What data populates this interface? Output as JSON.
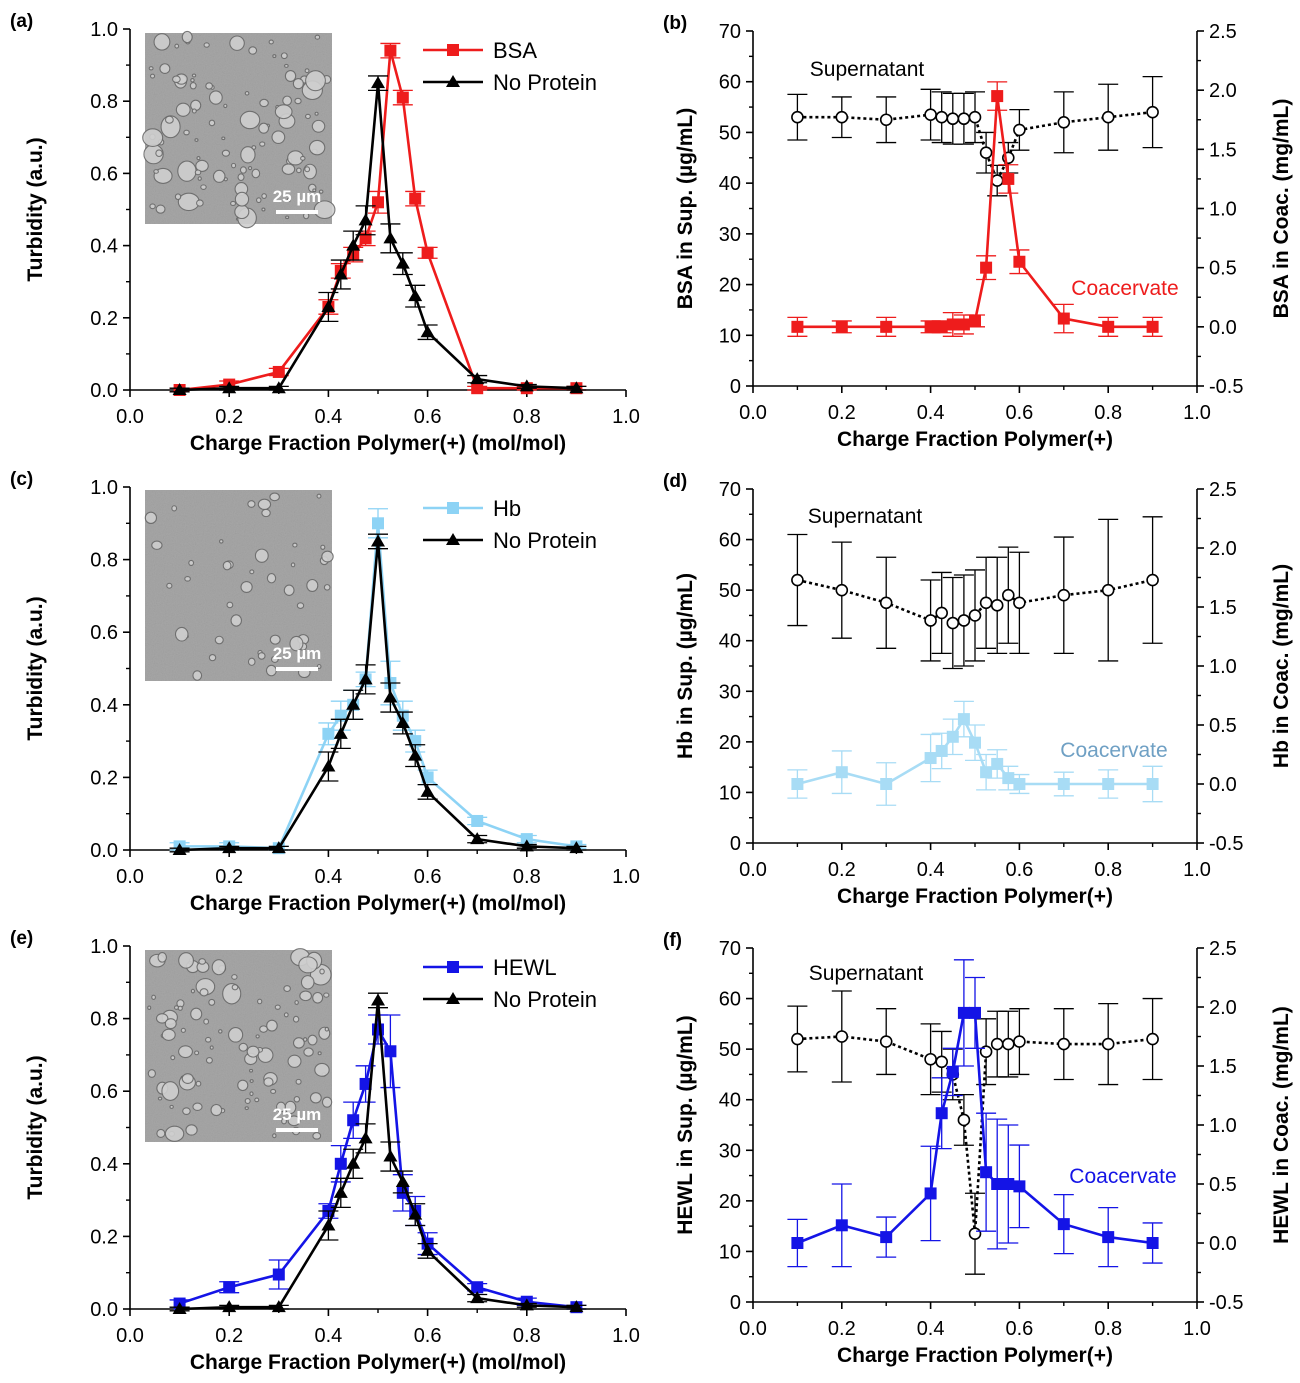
{
  "figure": {
    "panels": [
      "a",
      "b",
      "c",
      "d",
      "e",
      "f"
    ]
  },
  "chart_data": [
    {
      "id": "a",
      "type": "line",
      "panel_label": "(a)",
      "xlabel": "Charge Fraction Polymer(+) (mol/mol)",
      "ylabel": "Turbidity (a.u.)",
      "xlim": [
        0.0,
        1.0
      ],
      "ylim": [
        0.0,
        1.0
      ],
      "xticks": [
        "0.0",
        "0.2",
        "0.4",
        "0.6",
        "0.8",
        "1.0"
      ],
      "yticks": [
        "0.0",
        "0.2",
        "0.4",
        "0.6",
        "0.8",
        "1.0"
      ],
      "legend_position": "top-right",
      "inset": {
        "scale_bar_label": "25 µm",
        "kind": "micrograph"
      },
      "series": [
        {
          "name": "BSA",
          "color": "#ee1c1c",
          "marker": "square",
          "x": [
            0.1,
            0.2,
            0.3,
            0.4,
            0.425,
            0.45,
            0.475,
            0.5,
            0.525,
            0.55,
            0.575,
            0.6,
            0.7,
            0.8,
            0.9
          ],
          "y": [
            0.0,
            0.015,
            0.05,
            0.23,
            0.33,
            0.375,
            0.42,
            0.52,
            0.94,
            0.81,
            0.53,
            0.38,
            0.005,
            0.005,
            0.005
          ],
          "err": [
            0.005,
            0.01,
            0.01,
            0.02,
            0.02,
            0.02,
            0.02,
            0.03,
            0.02,
            0.02,
            0.02,
            0.015,
            0.005,
            0.005,
            0.005
          ]
        },
        {
          "name": "No Protein",
          "color": "#000000",
          "marker": "triangle",
          "x": [
            0.1,
            0.2,
            0.3,
            0.4,
            0.425,
            0.45,
            0.475,
            0.5,
            0.525,
            0.55,
            0.575,
            0.6,
            0.7,
            0.8,
            0.9
          ],
          "y": [
            0.0,
            0.005,
            0.005,
            0.23,
            0.32,
            0.4,
            0.47,
            0.85,
            0.42,
            0.35,
            0.26,
            0.16,
            0.03,
            0.01,
            0.005
          ],
          "err": [
            0.005,
            0.005,
            0.005,
            0.04,
            0.04,
            0.04,
            0.04,
            0.02,
            0.04,
            0.03,
            0.03,
            0.02,
            0.01,
            0.005,
            0.005
          ]
        }
      ]
    },
    {
      "id": "b",
      "type": "line",
      "panel_label": "(b)",
      "xlabel": "Charge Fraction Polymer(+)",
      "ylabel": "BSA in Sup. (µg/mL)",
      "y2label": "BSA in Coac. (mg/mL)",
      "xlim": [
        0.0,
        1.0
      ],
      "ylim": [
        0,
        70
      ],
      "y2lim": [
        -0.5,
        2.5
      ],
      "xticks": [
        "0.0",
        "0.2",
        "0.4",
        "0.6",
        "0.8",
        "1.0"
      ],
      "yticks": [
        "0",
        "10",
        "20",
        "30",
        "40",
        "50",
        "60",
        "70"
      ],
      "y2ticks": [
        "-0.5",
        "0.0",
        "0.5",
        "1.0",
        "1.5",
        "2.0",
        "2.5"
      ],
      "annotations": [
        {
          "text": "Supernatant",
          "color": "#000000",
          "x": 0.18,
          "y": 62
        },
        {
          "text": "Coacervate",
          "color": "#ee1c1c",
          "x": 0.8,
          "y": 19
        }
      ],
      "series": [
        {
          "name": "Supernatant",
          "color": "#000000",
          "marker": "open-circle",
          "axis": "left",
          "dash": true,
          "x": [
            0.1,
            0.2,
            0.3,
            0.4,
            0.425,
            0.45,
            0.475,
            0.5,
            0.525,
            0.55,
            0.575,
            0.6,
            0.7,
            0.8,
            0.9
          ],
          "y": [
            53,
            53,
            52.5,
            53.5,
            53,
            52.7,
            52.7,
            53,
            46,
            40.5,
            45,
            50.5,
            52,
            53,
            54
          ],
          "err": [
            4.5,
            4,
            4.5,
            5,
            5,
            5,
            5,
            5,
            4,
            3,
            3,
            4,
            6,
            6.5,
            7
          ]
        },
        {
          "name": "Coacervate",
          "color": "#ee1c1c",
          "marker": "square",
          "axis": "right",
          "x": [
            0.1,
            0.2,
            0.3,
            0.4,
            0.425,
            0.45,
            0.475,
            0.5,
            0.525,
            0.55,
            0.575,
            0.6,
            0.7,
            0.8,
            0.9
          ],
          "y": [
            0.0,
            0.0,
            0.0,
            0.0,
            0.0,
            0.02,
            0.02,
            0.05,
            0.5,
            1.95,
            1.25,
            0.55,
            0.07,
            0.0,
            0.0
          ],
          "err": [
            0.08,
            0.05,
            0.08,
            0.05,
            0.05,
            0.1,
            0.08,
            0.05,
            0.1,
            0.12,
            0.12,
            0.1,
            0.12,
            0.08,
            0.08
          ]
        }
      ]
    },
    {
      "id": "c",
      "type": "line",
      "panel_label": "(c)",
      "xlabel": "Charge Fraction Polymer(+) (mol/mol)",
      "ylabel": "Turbidity (a.u.)",
      "xlim": [
        0.0,
        1.0
      ],
      "ylim": [
        0.0,
        1.0
      ],
      "xticks": [
        "0.0",
        "0.2",
        "0.4",
        "0.6",
        "0.8",
        "1.0"
      ],
      "yticks": [
        "0.0",
        "0.2",
        "0.4",
        "0.6",
        "0.8",
        "1.0"
      ],
      "legend_position": "top-right",
      "inset": {
        "scale_bar_label": "25 µm",
        "kind": "micrograph"
      },
      "series": [
        {
          "name": "Hb",
          "color": "#8dd3f5",
          "marker": "square",
          "x": [
            0.1,
            0.2,
            0.3,
            0.4,
            0.425,
            0.45,
            0.475,
            0.5,
            0.525,
            0.55,
            0.575,
            0.6,
            0.7,
            0.8,
            0.9
          ],
          "y": [
            0.01,
            0.01,
            0.005,
            0.32,
            0.37,
            0.4,
            0.47,
            0.9,
            0.46,
            0.37,
            0.3,
            0.2,
            0.08,
            0.03,
            0.01
          ],
          "err": [
            0.01,
            0.01,
            0.005,
            0.03,
            0.04,
            0.04,
            0.02,
            0.04,
            0.06,
            0.04,
            0.03,
            0.02,
            0.01,
            0.01,
            0.005
          ]
        },
        {
          "name": "No Protein",
          "color": "#000000",
          "marker": "triangle",
          "x": [
            0.1,
            0.2,
            0.3,
            0.4,
            0.425,
            0.45,
            0.475,
            0.5,
            0.525,
            0.55,
            0.575,
            0.6,
            0.7,
            0.8,
            0.9
          ],
          "y": [
            0.0,
            0.005,
            0.005,
            0.23,
            0.32,
            0.4,
            0.47,
            0.85,
            0.42,
            0.35,
            0.26,
            0.16,
            0.03,
            0.01,
            0.005
          ],
          "err": [
            0.005,
            0.005,
            0.005,
            0.04,
            0.04,
            0.04,
            0.04,
            0.02,
            0.04,
            0.03,
            0.03,
            0.02,
            0.01,
            0.005,
            0.005
          ]
        }
      ]
    },
    {
      "id": "d",
      "type": "line",
      "panel_label": "(d)",
      "xlabel": "Charge Fraction Polymer(+)",
      "ylabel": "Hb in Sup. (µg/mL)",
      "y2label": "Hb in Coac. (mg/mL)",
      "xlim": [
        0.0,
        1.0
      ],
      "ylim": [
        0,
        70
      ],
      "y2lim": [
        -0.5,
        2.5
      ],
      "xticks": [
        "0.0",
        "0.2",
        "0.4",
        "0.6",
        "0.8",
        "1.0"
      ],
      "yticks": [
        "0",
        "10",
        "20",
        "30",
        "40",
        "50",
        "60",
        "70"
      ],
      "y2ticks": [
        "-0.5",
        "0.0",
        "0.5",
        "1.0",
        "1.5",
        "2.0",
        "2.5"
      ],
      "annotations": [
        {
          "text": "Supernatant",
          "color": "#000000",
          "x": 0.17,
          "y": 63
        },
        {
          "text": "Coacervate",
          "color": "#6fa0c4",
          "x": 0.8,
          "y": 20
        }
      ],
      "series": [
        {
          "name": "Supernatant",
          "color": "#000000",
          "marker": "open-circle",
          "axis": "left",
          "dash": true,
          "x": [
            0.1,
            0.2,
            0.3,
            0.4,
            0.425,
            0.45,
            0.475,
            0.5,
            0.525,
            0.55,
            0.575,
            0.6,
            0.7,
            0.8,
            0.9
          ],
          "y": [
            52,
            50,
            47.5,
            44,
            45.5,
            43.5,
            44,
            45,
            47.5,
            47,
            49,
            47.5,
            49,
            50,
            52
          ],
          "err": [
            9,
            9.5,
            9,
            8,
            8,
            9,
            9,
            9,
            9,
            9.5,
            9.5,
            10,
            11.5,
            14,
            12.5
          ]
        },
        {
          "name": "Coacervate",
          "color": "#a8dcf5",
          "marker": "square",
          "axis": "right",
          "x": [
            0.1,
            0.2,
            0.3,
            0.4,
            0.425,
            0.45,
            0.475,
            0.5,
            0.525,
            0.55,
            0.575,
            0.6,
            0.7,
            0.8,
            0.9
          ],
          "y": [
            0.0,
            0.1,
            0.0,
            0.22,
            0.28,
            0.4,
            0.55,
            0.35,
            0.1,
            0.17,
            0.05,
            0.0,
            0.0,
            0.0,
            0.0
          ],
          "err": [
            0.12,
            0.18,
            0.18,
            0.2,
            0.15,
            0.15,
            0.15,
            0.15,
            0.15,
            0.12,
            0.1,
            0.08,
            0.1,
            0.12,
            0.15
          ]
        }
      ]
    },
    {
      "id": "e",
      "type": "line",
      "panel_label": "(e)",
      "xlabel": "Charge Fraction Polymer(+) (mol/mol)",
      "ylabel": "Turbidity (a.u.)",
      "xlim": [
        0.0,
        1.0
      ],
      "ylim": [
        0.0,
        1.0
      ],
      "xticks": [
        "0.0",
        "0.2",
        "0.4",
        "0.6",
        "0.8",
        "1.0"
      ],
      "yticks": [
        "0.0",
        "0.2",
        "0.4",
        "0.6",
        "0.8",
        "1.0"
      ],
      "legend_position": "top-right",
      "inset": {
        "scale_bar_label": "25 µm",
        "kind": "micrograph"
      },
      "series": [
        {
          "name": "HEWL",
          "color": "#1414e6",
          "marker": "square",
          "x": [
            0.1,
            0.2,
            0.3,
            0.4,
            0.425,
            0.45,
            0.475,
            0.5,
            0.525,
            0.55,
            0.575,
            0.6,
            0.7,
            0.8,
            0.9
          ],
          "y": [
            0.015,
            0.06,
            0.095,
            0.27,
            0.4,
            0.52,
            0.62,
            0.77,
            0.71,
            0.32,
            0.27,
            0.18,
            0.06,
            0.02,
            0.005
          ],
          "err": [
            0.01,
            0.015,
            0.04,
            0.02,
            0.05,
            0.05,
            0.05,
            0.04,
            0.1,
            0.05,
            0.04,
            0.03,
            0.01,
            0.01,
            0.005
          ]
        },
        {
          "name": "No Protein",
          "color": "#000000",
          "marker": "triangle",
          "x": [
            0.1,
            0.2,
            0.3,
            0.4,
            0.425,
            0.45,
            0.475,
            0.5,
            0.525,
            0.55,
            0.575,
            0.6,
            0.7,
            0.8,
            0.9
          ],
          "y": [
            0.0,
            0.005,
            0.005,
            0.23,
            0.32,
            0.4,
            0.47,
            0.85,
            0.42,
            0.35,
            0.26,
            0.16,
            0.03,
            0.01,
            0.005
          ],
          "err": [
            0.005,
            0.005,
            0.005,
            0.04,
            0.04,
            0.04,
            0.04,
            0.02,
            0.04,
            0.03,
            0.03,
            0.02,
            0.01,
            0.005,
            0.005
          ]
        }
      ]
    },
    {
      "id": "f",
      "type": "line",
      "panel_label": "(f)",
      "xlabel": "Charge Fraction Polymer(+)",
      "ylabel": "HEWL in Sup. (µg/mL)",
      "y2label": "HEWL in Coac. (mg/mL)",
      "xlim": [
        0.0,
        1.0
      ],
      "ylim": [
        0,
        70
      ],
      "y2lim": [
        -0.5,
        2.5
      ],
      "xticks": [
        "0.0",
        "0.2",
        "0.4",
        "0.6",
        "0.8",
        "1.0"
      ],
      "yticks": [
        "0",
        "10",
        "20",
        "30",
        "40",
        "50",
        "60",
        "70"
      ],
      "y2ticks": [
        "-0.5",
        "0.0",
        "0.5",
        "1.0",
        "1.5",
        "2.0",
        "2.5"
      ],
      "annotations": [
        {
          "text": "Supernatant",
          "color": "#000000",
          "x": 0.16,
          "y": 63
        },
        {
          "text": "Coacervate",
          "color": "#1414e6",
          "x": 0.8,
          "y": 25
        }
      ],
      "series": [
        {
          "name": "Supernatant",
          "color": "#000000",
          "marker": "open-circle",
          "axis": "left",
          "dash": true,
          "x": [
            0.1,
            0.2,
            0.3,
            0.4,
            0.425,
            0.45,
            0.475,
            0.5,
            0.525,
            0.55,
            0.575,
            0.6,
            0.7,
            0.8,
            0.9
          ],
          "y": [
            52,
            52.5,
            51.5,
            48,
            47.5,
            45,
            36,
            13.5,
            49.5,
            51,
            51,
            51.5,
            51,
            51,
            52
          ],
          "err": [
            6.5,
            9,
            6.5,
            7,
            6,
            5,
            5,
            8,
            6.5,
            6.5,
            6.5,
            6.5,
            7,
            8,
            8
          ]
        },
        {
          "name": "Coacervate",
          "color": "#1414e6",
          "marker": "square",
          "axis": "right",
          "x": [
            0.1,
            0.2,
            0.3,
            0.4,
            0.425,
            0.45,
            0.475,
            0.5,
            0.525,
            0.55,
            0.575,
            0.6,
            0.7,
            0.8,
            0.9
          ],
          "y": [
            0.0,
            0.15,
            0.05,
            0.42,
            1.1,
            1.45,
            1.95,
            1.95,
            0.6,
            0.5,
            0.5,
            0.48,
            0.16,
            0.05,
            0.0
          ],
          "err": [
            0.2,
            0.35,
            0.17,
            0.4,
            0.3,
            0.2,
            0.45,
            0.3,
            0.5,
            0.55,
            0.5,
            0.35,
            0.25,
            0.25,
            0.17
          ]
        }
      ]
    }
  ]
}
